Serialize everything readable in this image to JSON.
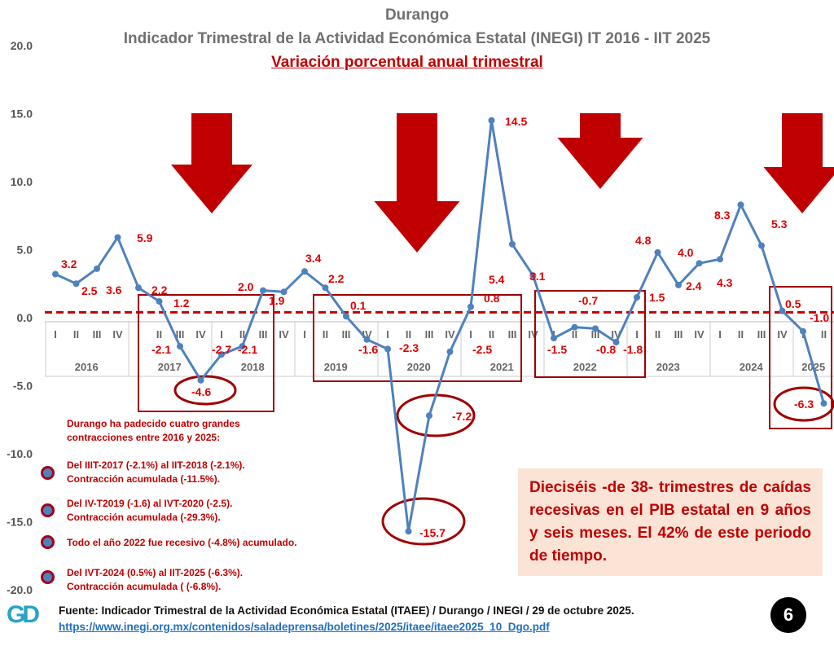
{
  "chart_data": {
    "type": "line",
    "title": "Durango",
    "subtitle": "Indicador Trimestral de la Actividad Económica Estatal (INEGI) IT 2016 - IIT 2025",
    "subtitle2": "Variación porcentual anual trimestral",
    "ylim": [
      -20,
      20
    ],
    "yticks": [
      "20.0",
      "15.0",
      "10.0",
      "5.0",
      "0.0",
      "-5.0",
      "-10.0",
      "-15.0",
      "-20.0"
    ],
    "quarters": [
      "I",
      "II",
      "III",
      "IV",
      "I",
      "II",
      "III",
      "IV",
      "I",
      "II",
      "III",
      "IV",
      "I",
      "II",
      "III",
      "IV",
      "I",
      "II",
      "III",
      "IV",
      "I",
      "II",
      "III",
      "IV",
      "I",
      "II",
      "III",
      "IV",
      "I",
      "II",
      "III",
      "IV",
      "I",
      "II",
      "III",
      "IV",
      "I",
      "II"
    ],
    "years": [
      "2016",
      "2017",
      "2018",
      "2019",
      "2020",
      "2021",
      "2022",
      "2023",
      "2024",
      "2025"
    ],
    "values": [
      3.2,
      2.5,
      3.6,
      5.9,
      2.2,
      1.2,
      -2.1,
      -4.6,
      -2.7,
      -2.1,
      2.0,
      1.9,
      3.4,
      2.2,
      0.1,
      -1.6,
      -2.3,
      -15.7,
      -7.2,
      -2.5,
      0.8,
      14.5,
      5.4,
      3.1,
      -1.5,
      -0.7,
      -0.8,
      -1.8,
      1.5,
      4.8,
      2.4,
      4.0,
      4.3,
      8.3,
      5.3,
      0.5,
      -1.0,
      -6.3
    ],
    "labels": [
      "3.2",
      "2.5",
      "3.6",
      "5.9",
      "2.2",
      "1.2",
      "-2.1",
      "-4.6",
      "-2.7",
      "-2.1",
      "2.0",
      "1.9",
      "3.4",
      "2.2",
      "0.1",
      "-1.6",
      "-2.3",
      "-15.7",
      "-7.2",
      "-2.5",
      "0.8",
      "14.5",
      "5.4",
      "3.1",
      "-1.5",
      "-0.7",
      "-0.8",
      "-1.8",
      "1.5",
      "4.8",
      "2.4",
      "4.0",
      "4.3",
      "8.3",
      "5.3",
      "0.5",
      "-1.0",
      "-6.3"
    ],
    "reference_line": 0.4,
    "colors": {
      "line": "#4f81bd",
      "labels": "#e00000",
      "accent": "#c00000"
    }
  },
  "notes": {
    "intro": "Durango ha padecido cuatro grandes contracciones entre 2016 y 2025:",
    "items": [
      "Del IIIT-2017 (-2.1%) al IIT-2018 (-2.1%). Contracción acumulada  (-11.5%).",
      "Del IV-T2019 (-1.6) al IVT-2020 (-2.5). Contracción acumulada (-29.3%).",
      "Todo el año 2022 fue recesivo (-4.8%) acumulado.",
      "Del IVT-2024 (0.5%) al IIT-2025 (-6.3%). Contracción acumulada ( (-6.8%)."
    ]
  },
  "callout": "Dieciséis -de 38- trimestres de caídas recesivas en el PIB estatal en  9 años y seis meses. El 42% de este periodo de tiempo.",
  "footer": {
    "logo": "GD",
    "source": "Fuente: Indicador Trimestral de la Actividad Económica Estatal (ITAEE) / Durango / INEGI / 29 de octubre 2025.",
    "url": "https://www.inegi.org.mx/contenidos/saladeprensa/boletines/2025/itaee/itaee2025_10_Dgo.pdf",
    "page": "6"
  }
}
